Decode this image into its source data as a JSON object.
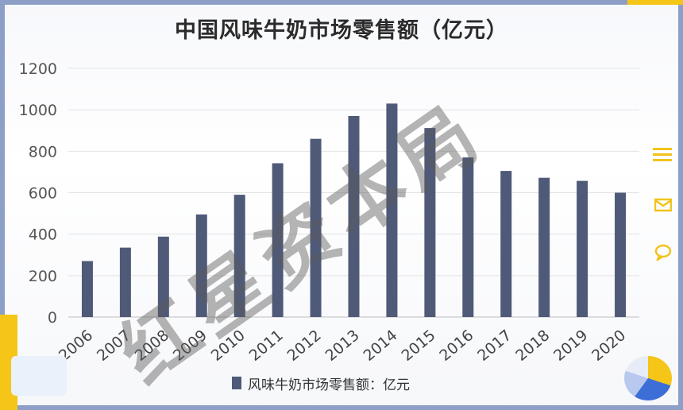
{
  "chart_data": {
    "type": "bar",
    "title": "中国风味牛奶市场零售额（亿元）",
    "categories": [
      "2006",
      "2007",
      "2008",
      "2009",
      "2010",
      "2011",
      "2012",
      "2013",
      "2014",
      "2015",
      "2016",
      "2017",
      "2018",
      "2019",
      "2020"
    ],
    "series": [
      {
        "name": "风味牛奶市场零售额：亿元",
        "values": [
          270,
          335,
          388,
          495,
          590,
          742,
          860,
          970,
          1030,
          912,
          770,
          705,
          672,
          657,
          600
        ]
      }
    ],
    "ylim": [
      0,
      1200
    ],
    "yticks": [
      0,
      200,
      400,
      600,
      800,
      1000,
      1200
    ],
    "grid": true,
    "legend_position": "bottom",
    "bar_color": "#4f5a78"
  },
  "watermark": "红星资本局",
  "side_icons": [
    "menu-icon",
    "mail-icon",
    "chat-icon"
  ]
}
